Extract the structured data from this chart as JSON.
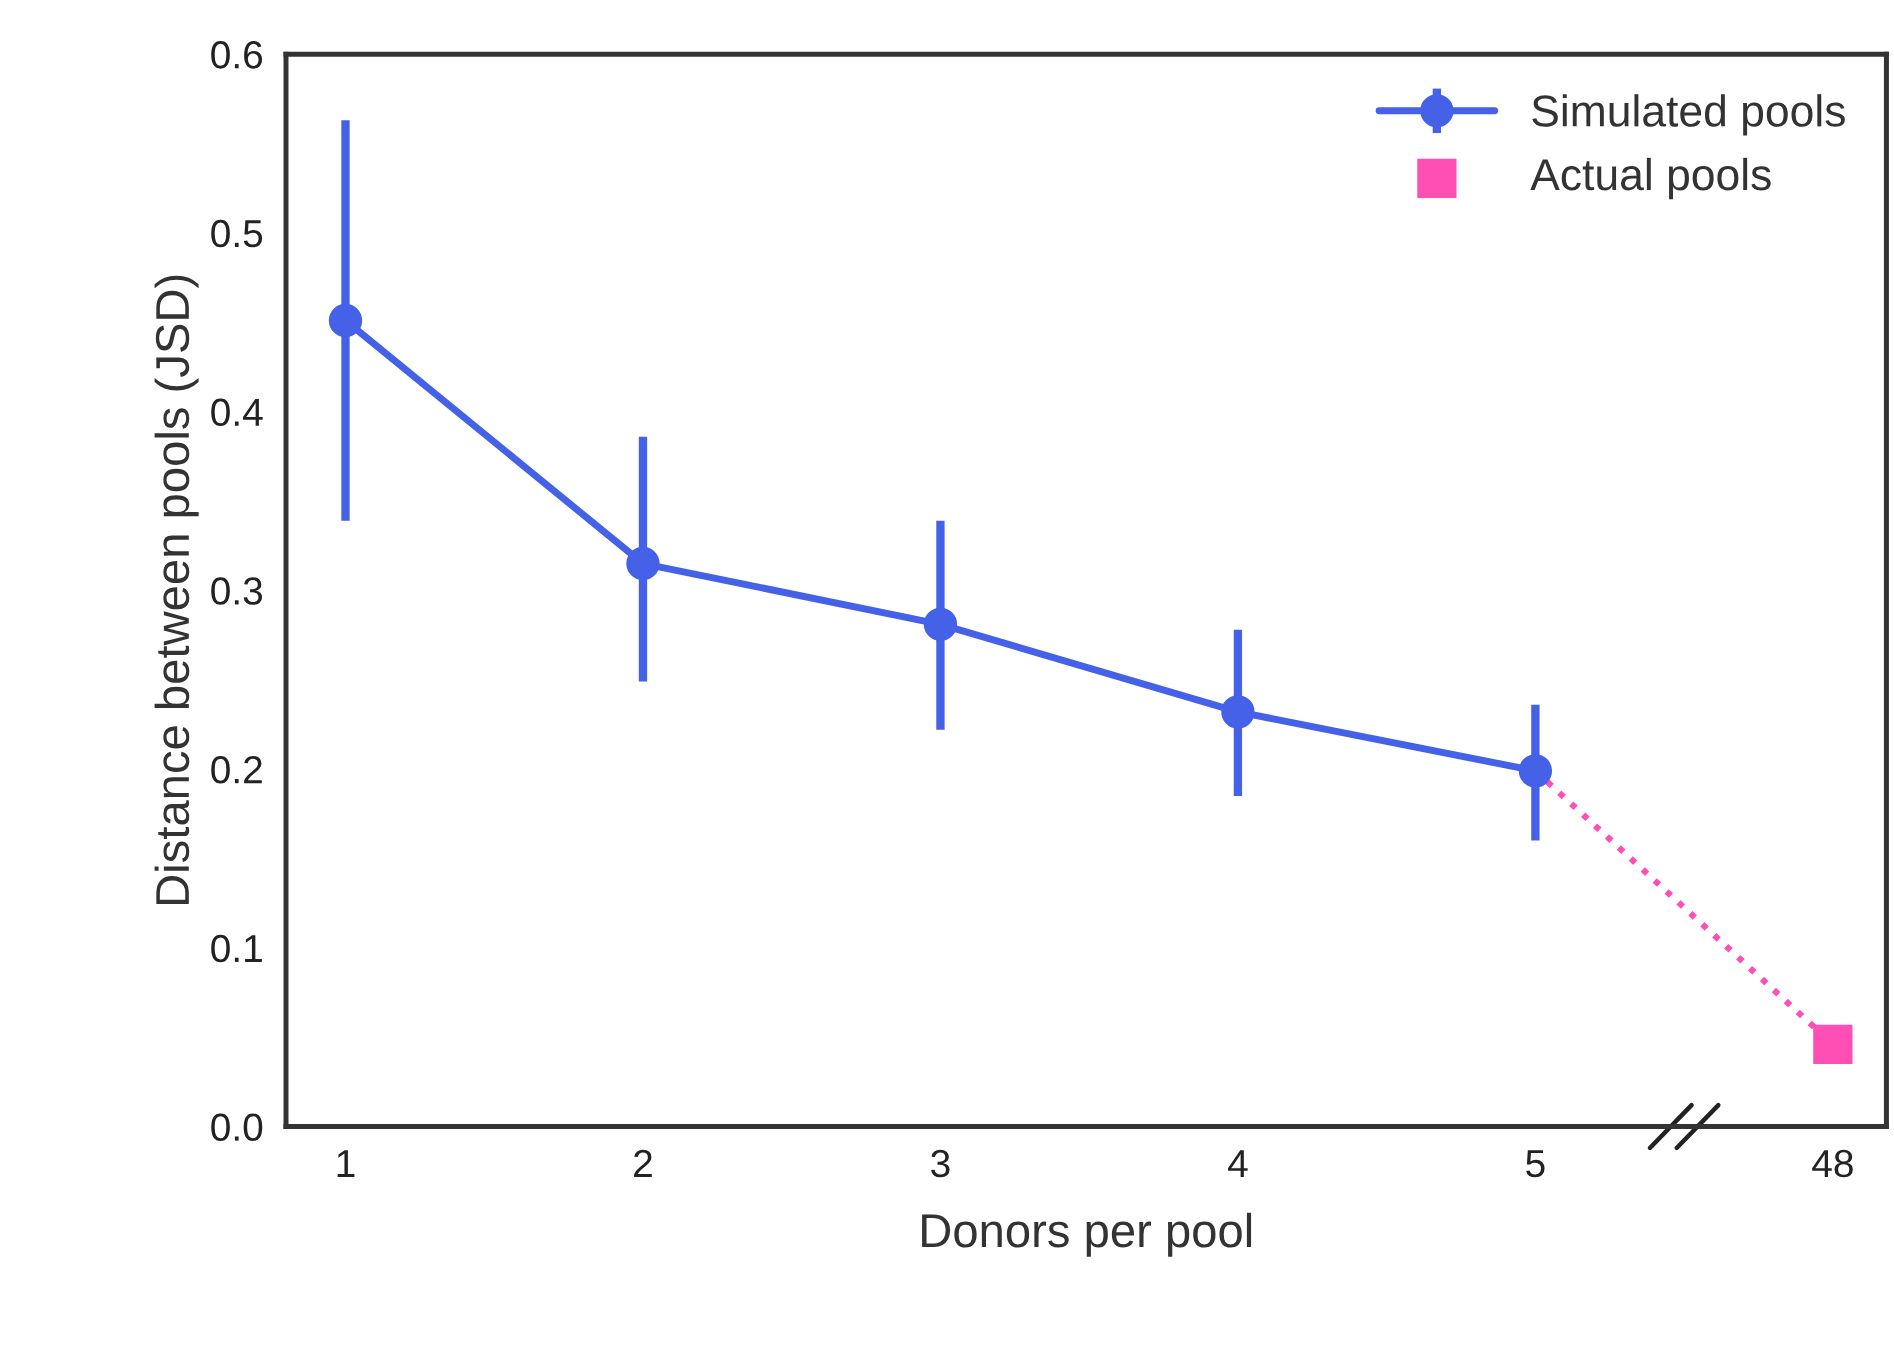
{
  "chart_data": {
    "type": "line",
    "xlabel": "Donors per pool",
    "ylabel": "Distance between pools (JSD)",
    "categories": [
      "1",
      "2",
      "3",
      "4",
      "5",
      "48"
    ],
    "series": [
      {
        "name": "Simulated pools",
        "color": "#4461e8",
        "marker": "circle",
        "line_style": "solid",
        "values": [
          0.451,
          0.315,
          0.281,
          0.232,
          0.199,
          null
        ],
        "errors": [
          [
            0.339,
            0.563
          ],
          [
            0.249,
            0.386
          ],
          [
            0.222,
            0.339
          ],
          [
            0.185,
            0.278
          ],
          [
            0.16,
            0.236
          ],
          null
        ]
      },
      {
        "color": "#ff4fb4",
        "marker": "none",
        "line_style": "dotted",
        "values": [
          null,
          null,
          null,
          null,
          0.199,
          0.046
        ]
      },
      {
        "name": "Actual pools",
        "type": "scatter",
        "color": "#ff4fb4",
        "marker": "square",
        "values": [
          null,
          null,
          null,
          null,
          null,
          0.046
        ]
      }
    ],
    "ylim": [
      0,
      0.6
    ],
    "yticks": [
      {
        "value": 0,
        "label": "0.0"
      },
      0.1,
      0.2,
      0.3,
      0.4,
      0.5,
      0.6
    ],
    "grid": false,
    "legend": "top right"
  }
}
